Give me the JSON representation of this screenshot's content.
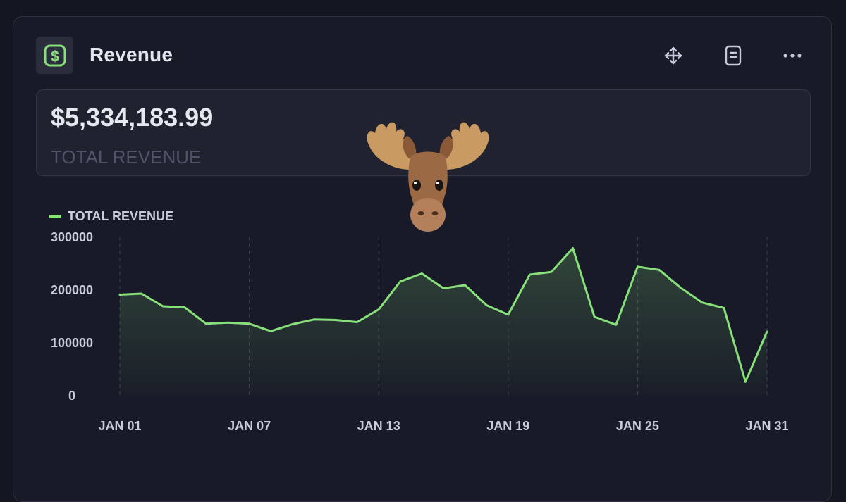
{
  "widget": {
    "title": "Revenue",
    "icon": "dollar-icon",
    "tools": [
      "move-icon",
      "document-icon",
      "more-icon"
    ]
  },
  "summary": {
    "value": "$5,334,183.99",
    "label": "TOTAL REVENUE"
  },
  "colors": {
    "accent": "#88e07a",
    "background": "#141621",
    "card": "#181a27",
    "axis_text": "#c9ccd9"
  },
  "chart_data": {
    "type": "area",
    "legend_position": "top-left",
    "grid": "vertical-dashed",
    "ylim": [
      0,
      300000
    ],
    "yticks": [
      300000,
      200000,
      100000,
      0
    ],
    "ytick_labels": [
      "300000",
      "200000",
      "100000",
      "0"
    ],
    "xticks": [
      1,
      7,
      13,
      19,
      25,
      31
    ],
    "xtick_labels": [
      "JAN 01",
      "JAN 07",
      "JAN 13",
      "JAN 19",
      "JAN 25",
      "JAN 31"
    ],
    "series": [
      {
        "name": "TOTAL REVENUE",
        "x": [
          1,
          2,
          3,
          4,
          5,
          6,
          7,
          8,
          9,
          10,
          11,
          12,
          13,
          14,
          15,
          16,
          17,
          18,
          19,
          20,
          21,
          22,
          23,
          24,
          25,
          26,
          27,
          28,
          29,
          30,
          31
        ],
        "values": [
          190000,
          192000,
          168000,
          166000,
          135000,
          137000,
          135000,
          121000,
          134000,
          143000,
          142000,
          138000,
          162000,
          215000,
          230000,
          202000,
          208000,
          170000,
          152000,
          228000,
          233000,
          278000,
          148000,
          133000,
          243000,
          237000,
          203000,
          175000,
          165000,
          25000,
          120000
        ]
      }
    ]
  },
  "decoration": {
    "emoji": "moose-icon"
  }
}
